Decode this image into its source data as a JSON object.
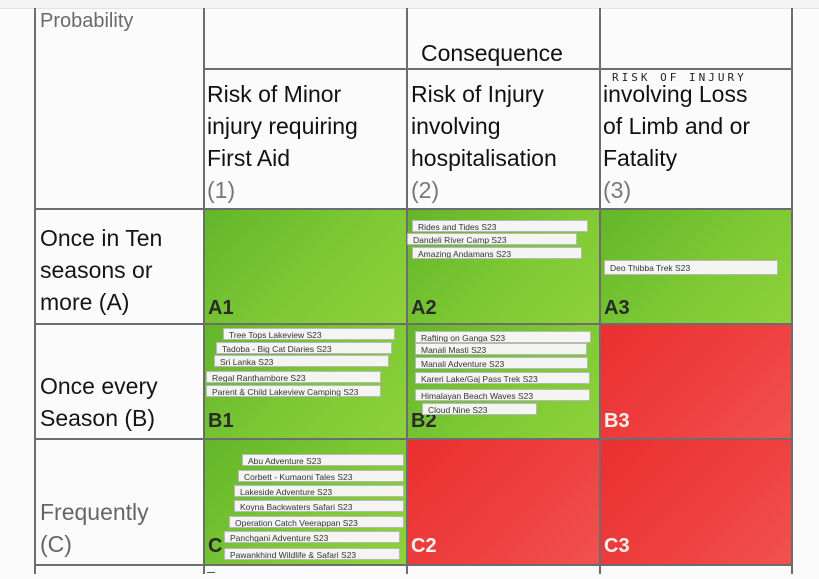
{
  "header": {
    "probability_label": "Probability",
    "consequence_label": "Consequence",
    "handwritten_note": "RISK OF INJURY",
    "columns": [
      {
        "text": "Risk of Minor\ninjury requiring\nFirst Aid",
        "num": "(1)"
      },
      {
        "text": "Risk of Injury\ninvolving\nhospitalisation",
        "num": "(2)"
      },
      {
        "text": "involving Loss\nof Limb and or\nFatality",
        "num": "(3)"
      }
    ]
  },
  "rows": [
    {
      "label": "Once in Ten\nseasons or\nmore (A)"
    },
    {
      "label": "Once every\nSeason (B)"
    },
    {
      "label": "Frequently\n(C)"
    }
  ],
  "cells": {
    "A1": {
      "code": "A1",
      "color": "green",
      "trips": []
    },
    "A2": {
      "code": "A2",
      "color": "green",
      "trips": [
        "Rides and Tides S23",
        "Dandeli River Camp S23",
        "Amazing Andamans S23"
      ]
    },
    "A3": {
      "code": "A3",
      "color": "green",
      "trips": [
        "Deo Thibba Trek S23"
      ]
    },
    "B1": {
      "code": "B1",
      "color": "green",
      "trips": [
        "Tree Tops Lakeview S23",
        "Tadoba - Big Cat Diaries S23",
        "Sri Lanka S23",
        "Regal Ranthambore S23",
        "Parent & Child Lakeview Camping S23"
      ]
    },
    "B2": {
      "code": "B2",
      "color": "green",
      "trips": [
        "Rafting on Ganga S23",
        "Manali Masti S23",
        "Manali Adventure S23",
        "Kareri Lake/Gaj Pass Trek S23",
        "Himalayan Beach Waves S23",
        "Cloud Nine S23"
      ]
    },
    "B3": {
      "code": "B3",
      "color": "red",
      "trips": []
    },
    "C1": {
      "code": "C",
      "color": "green",
      "trips": [
        "Abu Adventure S23",
        "Corbett - Kumaoni Tales S23",
        "Lakeside Adventure S23",
        "Koyna Backwaters Safari S23",
        "Operation Catch Veerappan S23",
        "Panchgani Adventure S23",
        "Pawankhind Wildlife & Safari S23"
      ]
    },
    "C2": {
      "code": "C2",
      "color": "red",
      "trips": []
    },
    "C3": {
      "code": "C3",
      "color": "red",
      "trips": []
    }
  },
  "colors": {
    "green": "#7dc934",
    "red": "#ef4141",
    "grid_line": "#6d6d6d"
  }
}
